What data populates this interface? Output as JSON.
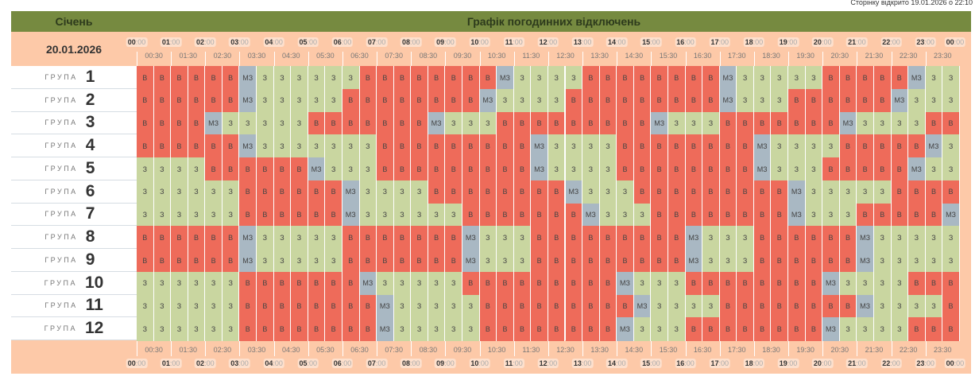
{
  "opened_text": "Сторінку відкрито 19.01.2026 о 22:10",
  "month": "Січень",
  "title": "Графік погодинних відключень",
  "date": "20.01.2026",
  "group_word": "ГРУПА",
  "hour_labels": [
    "00",
    "01",
    "02",
    "03",
    "04",
    "05",
    "06",
    "07",
    "08",
    "09",
    "10",
    "11",
    "12",
    "13",
    "14",
    "15",
    "16",
    "17",
    "18",
    "19",
    "20",
    "21",
    "22",
    "23",
    "00"
  ],
  "hour_suffix": ":00",
  "half_labels": [
    "00:30",
    "01:30",
    "02:30",
    "03:30",
    "04:30",
    "05:30",
    "06:30",
    "07:30",
    "08:30",
    "09:30",
    "10:30",
    "11:30",
    "12:30",
    "13:30",
    "14:30",
    "15:30",
    "16:30",
    "17:30",
    "18:30",
    "19:30",
    "20:30",
    "21:30",
    "22:30",
    "23:30"
  ],
  "legend": {
    "B": {
      "text": "В",
      "color": "#ee6b5a"
    },
    "Z": {
      "text": "З",
      "color": "#c9d6a0"
    },
    "M": {
      "text": "МЗ",
      "color": "#a9b8c3"
    }
  },
  "groups": [
    {
      "number": "1",
      "slots": "BBBBBBMZZZZZZBBBBBBBBMZZZZBBBBBBBBMZZZZZBBBBBMZZ"
    },
    {
      "number": "2",
      "slots": "BBBBBBMZZZZZBBBBBBBBMZZZZBBBBBBBBBMZZZBBBBBBMZZZ"
    },
    {
      "number": "3",
      "slots": "BBBBMZZZZZBBBBBBBMZZZBBBBBBBBBMZZZBBBBBBBMZZZZBB"
    },
    {
      "number": "4",
      "slots": "BBBBBBMZZZZZZZBBBBBBBBBMZZZZBBBBBBBBMZZZZBBBBBMZ"
    },
    {
      "number": "5",
      "slots": "ZZZZBBBBBBMZZZBBBBBBBBBMZZZZBBBBBBBBMZZZBBBBBMZZ"
    },
    {
      "number": "6",
      "slots": "ZZZZZZBBBBBBMZZZZBBBBBBBBMZZZBBBBBBBBBMZZZZZBBBB"
    },
    {
      "number": "7",
      "slots": "ZZZZZZBBBBBBMZZZZZZBBBBBBBMZZZBBBBBBBBMZZZBBBBBM"
    },
    {
      "number": "8",
      "slots": "BBBBBBMZZZZZBBBBBBBMZZZBBBBBBBBBMZZZBBBBBBMZZZZZ"
    },
    {
      "number": "9",
      "slots": "BBBBBBMZZZZZBBBBBBBMZZZBBBBBBBBBMZZZBBBBBBMZZZZZ"
    },
    {
      "number": "10",
      "slots": "ZZZZZZBBBBBBBMZZZZZBBBBBBBBBMZZZBBBBBBBBMZZZZBBB"
    },
    {
      "number": "11",
      "slots": "ZZZZZZBBBBBBBBMZZZZZBBBBBBBBBMZZZZBBBBBBBBMZZZZB"
    },
    {
      "number": "12",
      "slots": "ZZZZZZBBBBBBBBMZZZZZBBBBBBBBMZZZBBBBBBBBMZZZZBBB"
    }
  ]
}
